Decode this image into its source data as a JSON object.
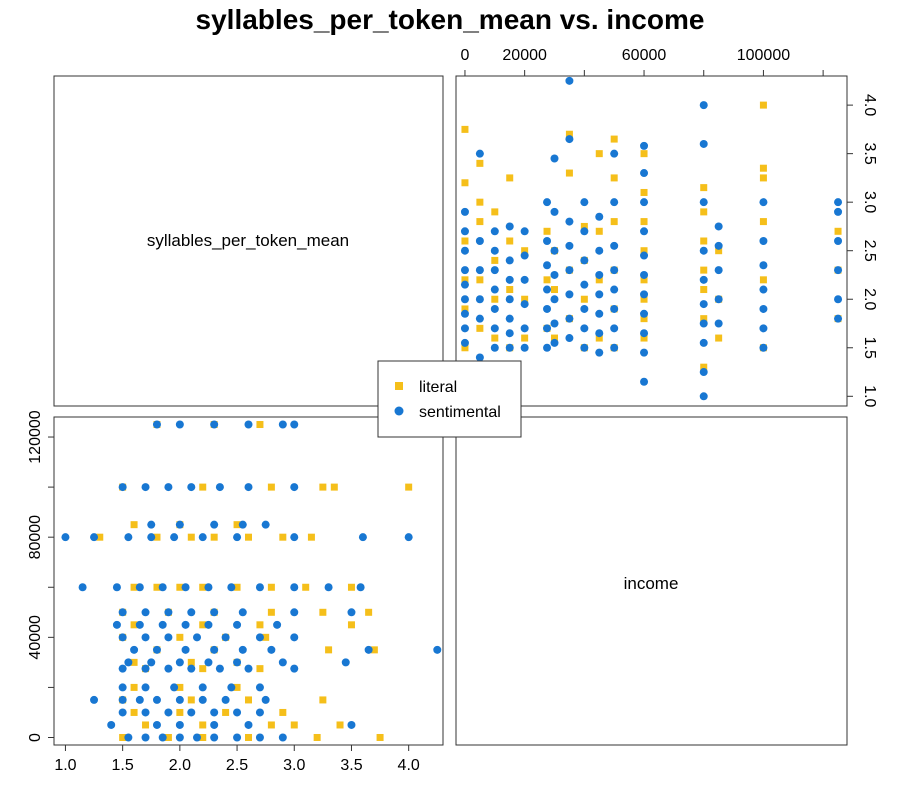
{
  "chart_data": {
    "type": "scatter",
    "title": "syllables_per_token_mean vs. income",
    "variables": [
      "syllables_per_token_mean",
      "income"
    ],
    "axes": {
      "syllables": {
        "range": [
          0.9,
          4.3
        ],
        "ticks": [
          1.0,
          1.5,
          2.0,
          2.5,
          3.0,
          3.5,
          4.0
        ],
        "tick_labels": [
          "1.0",
          "1.5",
          "2.0",
          "2.5",
          "3.0",
          "3.5",
          "4.0"
        ]
      },
      "income": {
        "range": [
          -3000,
          128000
        ],
        "ticks_left": [
          0,
          40000,
          80000,
          120000
        ],
        "tick_labels_left": [
          "0",
          "40000",
          "80000",
          "120000"
        ],
        "ticks_top": [
          0,
          20000,
          60000,
          100000
        ],
        "tick_labels_top": [
          "0",
          "20000",
          "60000",
          "100000"
        ]
      }
    },
    "legend": {
      "position": "center",
      "entries": [
        {
          "name": "literal",
          "marker": "square",
          "color": "#F5BF1A"
        },
        {
          "name": "sentimental",
          "marker": "circle",
          "color": "#1877D2"
        }
      ]
    },
    "income_levels": [
      0,
      5000,
      10000,
      15000,
      20000,
      27500,
      30000,
      35000,
      40000,
      45000,
      50000,
      60000,
      80000,
      85000,
      100000,
      125000
    ],
    "series": [
      {
        "name": "literal",
        "points": [
          [
            1.5,
            0
          ],
          [
            1.9,
            0
          ],
          [
            2.2,
            0
          ],
          [
            2.6,
            0
          ],
          [
            3.2,
            0
          ],
          [
            3.75,
            0
          ],
          [
            1.7,
            5000
          ],
          [
            2.2,
            5000
          ],
          [
            2.8,
            5000
          ],
          [
            3.0,
            5000
          ],
          [
            3.4,
            5000
          ],
          [
            1.6,
            10000
          ],
          [
            2.0,
            10000
          ],
          [
            2.4,
            10000
          ],
          [
            2.9,
            10000
          ],
          [
            1.5,
            15000
          ],
          [
            2.1,
            15000
          ],
          [
            2.6,
            15000
          ],
          [
            3.25,
            15000
          ],
          [
            1.6,
            20000
          ],
          [
            2.0,
            20000
          ],
          [
            2.5,
            20000
          ],
          [
            1.7,
            27500
          ],
          [
            2.2,
            27500
          ],
          [
            2.7,
            27500
          ],
          [
            1.6,
            30000
          ],
          [
            2.1,
            30000
          ],
          [
            2.5,
            30000
          ],
          [
            1.8,
            35000
          ],
          [
            2.3,
            35000
          ],
          [
            3.3,
            35000
          ],
          [
            3.7,
            35000
          ],
          [
            1.5,
            40000
          ],
          [
            2.0,
            40000
          ],
          [
            2.4,
            40000
          ],
          [
            2.75,
            40000
          ],
          [
            1.6,
            45000
          ],
          [
            2.2,
            45000
          ],
          [
            2.7,
            45000
          ],
          [
            3.5,
            45000
          ],
          [
            1.5,
            50000
          ],
          [
            1.9,
            50000
          ],
          [
            2.3,
            50000
          ],
          [
            2.8,
            50000
          ],
          [
            3.25,
            50000
          ],
          [
            3.65,
            50000
          ],
          [
            1.6,
            60000
          ],
          [
            1.8,
            60000
          ],
          [
            2.0,
            60000
          ],
          [
            2.2,
            60000
          ],
          [
            2.5,
            60000
          ],
          [
            2.8,
            60000
          ],
          [
            3.1,
            60000
          ],
          [
            3.5,
            60000
          ],
          [
            1.3,
            80000
          ],
          [
            1.8,
            80000
          ],
          [
            2.1,
            80000
          ],
          [
            2.3,
            80000
          ],
          [
            2.6,
            80000
          ],
          [
            2.9,
            80000
          ],
          [
            3.15,
            80000
          ],
          [
            1.6,
            85000
          ],
          [
            2.0,
            85000
          ],
          [
            2.5,
            85000
          ],
          [
            1.5,
            100000
          ],
          [
            2.2,
            100000
          ],
          [
            2.8,
            100000
          ],
          [
            3.25,
            100000
          ],
          [
            3.35,
            100000
          ],
          [
            4.0,
            100000
          ],
          [
            1.8,
            125000
          ],
          [
            2.3,
            125000
          ],
          [
            2.7,
            125000
          ]
        ]
      },
      {
        "name": "sentimental",
        "points": [
          [
            1.55,
            0
          ],
          [
            1.7,
            0
          ],
          [
            1.85,
            0
          ],
          [
            2.0,
            0
          ],
          [
            2.15,
            0
          ],
          [
            2.3,
            0
          ],
          [
            2.5,
            0
          ],
          [
            2.7,
            0
          ],
          [
            2.9,
            0
          ],
          [
            1.4,
            5000
          ],
          [
            1.8,
            5000
          ],
          [
            2.0,
            5000
          ],
          [
            2.3,
            5000
          ],
          [
            2.6,
            5000
          ],
          [
            3.5,
            5000
          ],
          [
            1.5,
            10000
          ],
          [
            1.7,
            10000
          ],
          [
            1.9,
            10000
          ],
          [
            2.1,
            10000
          ],
          [
            2.3,
            10000
          ],
          [
            2.5,
            10000
          ],
          [
            2.7,
            10000
          ],
          [
            1.25,
            15000
          ],
          [
            1.5,
            15000
          ],
          [
            1.65,
            15000
          ],
          [
            1.8,
            15000
          ],
          [
            2.0,
            15000
          ],
          [
            2.2,
            15000
          ],
          [
            2.4,
            15000
          ],
          [
            2.75,
            15000
          ],
          [
            1.5,
            20000
          ],
          [
            1.7,
            20000
          ],
          [
            1.95,
            20000
          ],
          [
            2.2,
            20000
          ],
          [
            2.45,
            20000
          ],
          [
            2.7,
            20000
          ],
          [
            1.5,
            27500
          ],
          [
            1.7,
            27500
          ],
          [
            1.9,
            27500
          ],
          [
            2.1,
            27500
          ],
          [
            2.35,
            27500
          ],
          [
            2.6,
            27500
          ],
          [
            3.0,
            27500
          ],
          [
            1.55,
            30000
          ],
          [
            1.75,
            30000
          ],
          [
            2.0,
            30000
          ],
          [
            2.25,
            30000
          ],
          [
            2.5,
            30000
          ],
          [
            2.9,
            30000
          ],
          [
            3.45,
            30000
          ],
          [
            1.6,
            35000
          ],
          [
            1.8,
            35000
          ],
          [
            2.05,
            35000
          ],
          [
            2.3,
            35000
          ],
          [
            2.55,
            35000
          ],
          [
            2.8,
            35000
          ],
          [
            3.65,
            35000
          ],
          [
            4.25,
            35000
          ],
          [
            1.5,
            40000
          ],
          [
            1.7,
            40000
          ],
          [
            1.9,
            40000
          ],
          [
            2.15,
            40000
          ],
          [
            2.4,
            40000
          ],
          [
            2.7,
            40000
          ],
          [
            3.0,
            40000
          ],
          [
            1.45,
            45000
          ],
          [
            1.65,
            45000
          ],
          [
            1.85,
            45000
          ],
          [
            2.05,
            45000
          ],
          [
            2.25,
            45000
          ],
          [
            2.5,
            45000
          ],
          [
            2.85,
            45000
          ],
          [
            1.5,
            50000
          ],
          [
            1.7,
            50000
          ],
          [
            1.9,
            50000
          ],
          [
            2.1,
            50000
          ],
          [
            2.3,
            50000
          ],
          [
            2.55,
            50000
          ],
          [
            3.0,
            50000
          ],
          [
            3.5,
            50000
          ],
          [
            1.15,
            60000
          ],
          [
            1.45,
            60000
          ],
          [
            1.65,
            60000
          ],
          [
            1.85,
            60000
          ],
          [
            2.05,
            60000
          ],
          [
            2.25,
            60000
          ],
          [
            2.45,
            60000
          ],
          [
            2.7,
            60000
          ],
          [
            3.0,
            60000
          ],
          [
            3.3,
            60000
          ],
          [
            3.58,
            60000
          ],
          [
            1.0,
            80000
          ],
          [
            1.25,
            80000
          ],
          [
            1.55,
            80000
          ],
          [
            1.75,
            80000
          ],
          [
            1.95,
            80000
          ],
          [
            2.2,
            80000
          ],
          [
            2.5,
            80000
          ],
          [
            3.0,
            80000
          ],
          [
            3.6,
            80000
          ],
          [
            4.0,
            80000
          ],
          [
            1.75,
            85000
          ],
          [
            2.0,
            85000
          ],
          [
            2.3,
            85000
          ],
          [
            2.55,
            85000
          ],
          [
            2.75,
            85000
          ],
          [
            1.5,
            100000
          ],
          [
            1.7,
            100000
          ],
          [
            1.9,
            100000
          ],
          [
            2.1,
            100000
          ],
          [
            2.35,
            100000
          ],
          [
            2.6,
            100000
          ],
          [
            3.0,
            100000
          ],
          [
            1.8,
            125000
          ],
          [
            2.0,
            125000
          ],
          [
            2.3,
            125000
          ],
          [
            2.6,
            125000
          ],
          [
            2.9,
            125000
          ],
          [
            3.0,
            125000
          ]
        ]
      }
    ]
  }
}
